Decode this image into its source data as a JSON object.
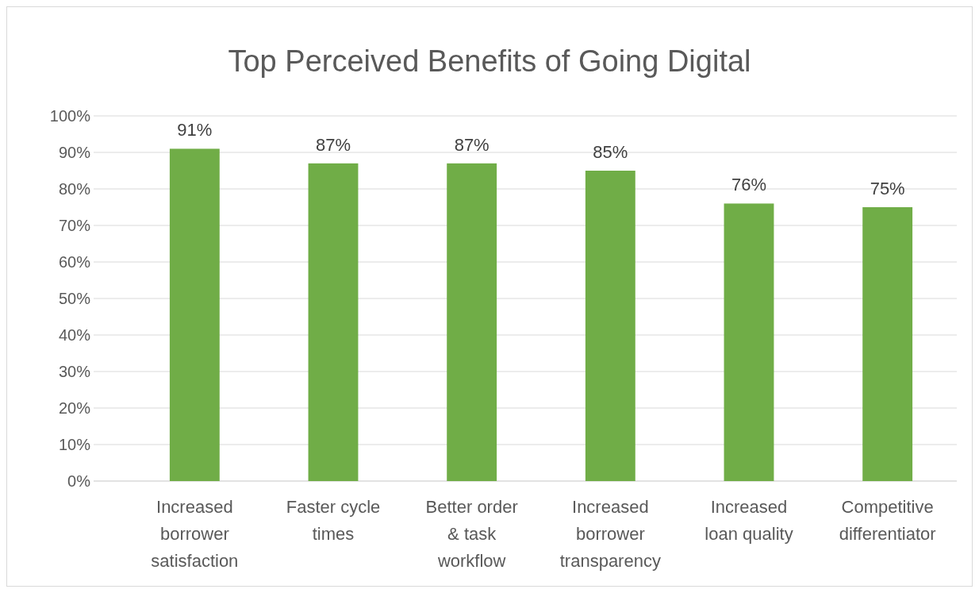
{
  "chart_data": {
    "type": "bar",
    "title": "Top Perceived Benefits of Going Digital",
    "categories": [
      "Increased borrower satisfaction",
      "Faster cycle times",
      "Better order & task workflow",
      "Increased borrower transparency",
      "Increased loan quality",
      "Competitive differentiator"
    ],
    "values": [
      91,
      87,
      87,
      85,
      76,
      75
    ],
    "value_labels": [
      "91%",
      "87%",
      "87%",
      "85%",
      "76%",
      "75%"
    ],
    "color": "#70ad47",
    "ylim": [
      0,
      100
    ],
    "yticks": [
      {
        "value": 0,
        "label": "0%"
      },
      {
        "value": 10,
        "label": "10%"
      },
      {
        "value": 20,
        "label": "20%"
      },
      {
        "value": 30,
        "label": "30%"
      },
      {
        "value": 40,
        "label": "40%"
      },
      {
        "value": 50,
        "label": "50%"
      },
      {
        "value": 60,
        "label": "60%"
      },
      {
        "value": 70,
        "label": "70%"
      },
      {
        "value": 80,
        "label": "80%"
      },
      {
        "value": 90,
        "label": "90%"
      },
      {
        "value": 100,
        "label": "100%"
      }
    ],
    "grid": "y"
  }
}
